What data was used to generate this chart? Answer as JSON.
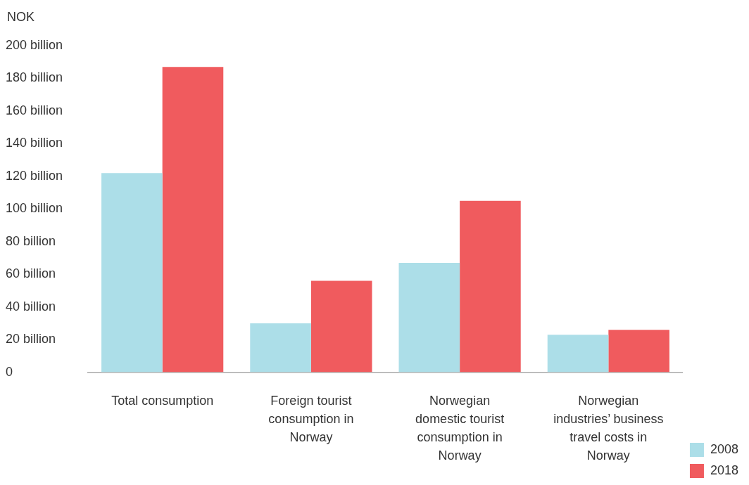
{
  "chart_data": {
    "type": "bar",
    "ylabel": "NOK",
    "categories": [
      "Total consumption",
      "Foreign tourist consumption in Norway",
      "Norwegian domestic tourist consumption in Norway",
      "Norwegian industries’ business travel costs in Norway"
    ],
    "series": [
      {
        "name": "2008",
        "color": "#acdee8",
        "values": [
          122,
          30,
          67,
          23
        ]
      },
      {
        "name": "2018",
        "color": "#f05b5e",
        "values": [
          187,
          56,
          105,
          26
        ]
      }
    ],
    "ylim": [
      0,
      200
    ],
    "yticks": [
      0,
      {
        "value": 20,
        "label": "20 billion"
      },
      {
        "value": 40,
        "label": "40 billion"
      },
      {
        "value": 60,
        "label": "60 billion"
      },
      {
        "value": 80,
        "label": "80 billion"
      },
      {
        "value": 100,
        "label": "100 billion"
      },
      {
        "value": 120,
        "label": "120 billion"
      },
      {
        "value": 140,
        "label": "140 billion"
      },
      {
        "value": 160,
        "label": "160 billion"
      },
      {
        "value": 180,
        "label": "180 billion"
      },
      {
        "value": 200,
        "label": "200 billion"
      }
    ],
    "grid": false,
    "legend": "bottom right"
  }
}
